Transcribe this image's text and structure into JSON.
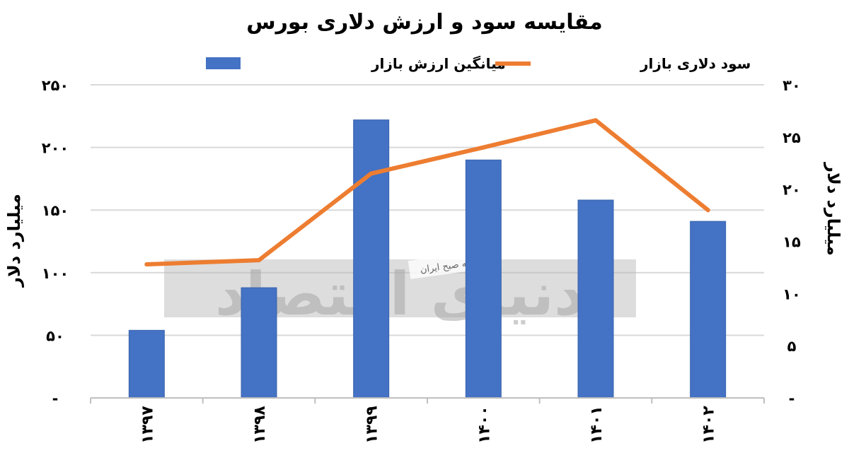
{
  "chart_data": {
    "type": "bar",
    "title": "مقایسه سود و ارزش دلاری بورس",
    "categories": [
      "۱۳۹۷",
      "۱۳۹۸",
      "۱۳۹۹",
      "۱۴۰۰",
      "۱۴۰۱",
      "۱۴۰۲"
    ],
    "series": [
      {
        "name": "میانگین ارزش بازار",
        "type": "bar",
        "axis": "left",
        "color": "#4472c4",
        "values": [
          54,
          88,
          222,
          190,
          158,
          141
        ]
      },
      {
        "name": "سود دلاری بازار",
        "type": "line",
        "axis": "right",
        "color": "#ed7d31",
        "values": [
          12.8,
          13.2,
          21.5,
          24,
          26.6,
          18
        ]
      }
    ],
    "ylabel": "میلیارد دلار",
    "ylabel_right": "میلیارد دلار",
    "ylim": [
      0,
      250
    ],
    "ylim_right": [
      0,
      30
    ],
    "yticks_left": [
      "-",
      "۵۰",
      "۱۰۰",
      "۱۵۰",
      "۲۰۰",
      "۲۵۰"
    ],
    "yticks_right": [
      "-",
      "۵",
      "۱۰",
      "۱۵",
      "۲۰",
      "۲۵",
      "۳۰"
    ],
    "grid": true,
    "legend_position": "top"
  },
  "watermark": {
    "main_text": "دنیای اقتصاد",
    "sub_text": "روزنامه صبح ایران"
  }
}
